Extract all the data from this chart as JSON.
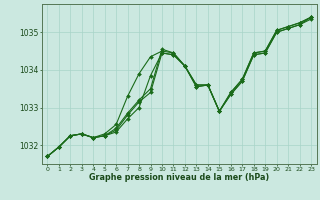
{
  "background_color": "#cbe8e0",
  "grid_color": "#a8d4c8",
  "line_color": "#1a6b1a",
  "marker_color": "#1a6b1a",
  "xlabel": "Graphe pression niveau de la mer (hPa)",
  "xlabel_color": "#1a4a1a",
  "tick_color": "#1a4a1a",
  "axis_color": "#557755",
  "ylim": [
    1031.5,
    1035.75
  ],
  "xlim": [
    -0.5,
    23.5
  ],
  "yticks": [
    1032,
    1033,
    1034,
    1035
  ],
  "xticks": [
    0,
    1,
    2,
    3,
    4,
    5,
    6,
    7,
    8,
    9,
    10,
    11,
    12,
    13,
    14,
    15,
    16,
    17,
    18,
    19,
    20,
    21,
    22,
    23
  ],
  "series": [
    [
      1031.7,
      1031.95,
      1032.25,
      1032.3,
      1032.2,
      1032.25,
      1032.35,
      1032.7,
      1033.0,
      1033.85,
      1034.45,
      1034.4,
      1034.1,
      1033.55,
      1033.6,
      1032.9,
      1033.35,
      1033.7,
      1034.4,
      1034.45,
      1035.0,
      1035.1,
      1035.2,
      1035.4
    ],
    [
      1031.7,
      1031.95,
      1032.25,
      1032.3,
      1032.2,
      1032.25,
      1032.4,
      1032.8,
      1033.15,
      1033.4,
      1034.45,
      1034.4,
      1034.1,
      1033.55,
      1033.6,
      1032.9,
      1033.35,
      1033.7,
      1034.4,
      1034.45,
      1035.0,
      1035.1,
      1035.2,
      1035.35
    ],
    [
      1031.7,
      1031.95,
      1032.25,
      1032.3,
      1032.2,
      1032.25,
      1032.45,
      1032.85,
      1033.2,
      1033.5,
      1034.55,
      1034.45,
      1034.1,
      1033.6,
      1033.6,
      1032.9,
      1033.4,
      1033.75,
      1034.45,
      1034.5,
      1035.05,
      1035.15,
      1035.25,
      1035.4
    ],
    [
      1031.7,
      1031.95,
      1032.25,
      1032.3,
      1032.2,
      1032.3,
      1032.55,
      1033.3,
      1033.9,
      1034.35,
      1034.5,
      1034.45,
      1034.1,
      1033.6,
      1033.6,
      1032.9,
      1033.4,
      1033.75,
      1034.45,
      1034.5,
      1035.05,
      1035.15,
      1035.25,
      1035.4
    ]
  ]
}
